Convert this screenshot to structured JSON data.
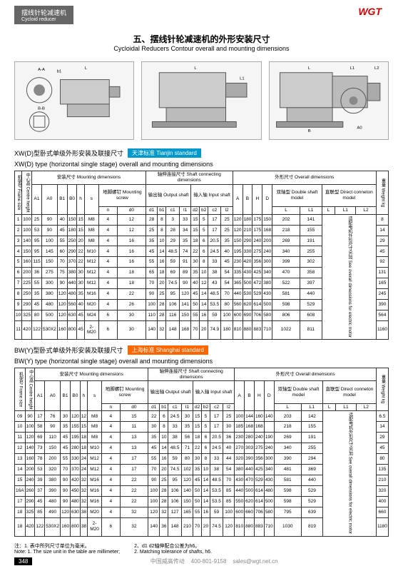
{
  "header": {
    "label_cn": "摆线针轮减速机",
    "label_en": "Cycloid reducer",
    "logo": "WGT"
  },
  "title": {
    "cn": "五、摆线针轮减速机的外形安装尺寸",
    "en": "Cycloidal Reducers Contour overall and mounting dimensions"
  },
  "xw": {
    "title_cn": "XW(D)型卧式单级外形安装及联接尺寸",
    "title_en": "XW(D) type (horizontal single stage) overall and mounting dimensions",
    "badge": "天津标准 Tianjin standard",
    "group_headers": {
      "frame": "机架号\nFrame size",
      "centre": "中心高\nCentre height",
      "mount": "安装尺寸 Mounting dimensions",
      "shaft": "轴伸连接尺寸\nShaft connecting dimensions",
      "overall": "外形尺寸 Overall dimensions",
      "weight": "重量\nWeight kg",
      "screw": "地脚螺钉\nMounting screw",
      "out": "输出轴\nOutput shaft",
      "in": "输入轴\nInput shaft",
      "double": "双轴型\nDouble shaft model",
      "direct": "直联型\nDirect conneton model",
      "motor_note": "适配电机外形尺寸另加\nSee overall dimensions\nfor electric motor"
    },
    "cols": [
      "A1",
      "A0",
      "B1",
      "B0",
      "h",
      "s",
      "n",
      "d0",
      "d1",
      "b1",
      "c1",
      "l1",
      "d2",
      "b2",
      "c2",
      "l2",
      "A",
      "B",
      "H",
      "D",
      "L",
      "L1",
      "L",
      "L1",
      "L2"
    ],
    "rows": [
      [
        "1",
        "100",
        "25",
        "90",
        "40",
        "150",
        "15",
        "M8",
        "4",
        "12",
        "28",
        "8",
        "3",
        "33",
        "15",
        "5",
        "17",
        "25",
        "120",
        "180",
        "175",
        "150",
        "202",
        "141",
        "",
        "",
        "",
        "8"
      ],
      [
        "2",
        "100",
        "53",
        "90",
        "45",
        "180",
        "15",
        "M8",
        "4",
        "12",
        "25",
        "8",
        "28",
        "34",
        "15",
        "5",
        "17",
        "25",
        "120",
        "210",
        "175",
        "168",
        "218",
        "155",
        "",
        "",
        "",
        "14"
      ],
      [
        "3",
        "140",
        "95",
        "100",
        "55",
        "250",
        "20",
        "M8",
        "4",
        "16",
        "35",
        "10",
        "29",
        "35",
        "18",
        "6",
        "20.5",
        "35",
        "150",
        "290",
        "240",
        "200",
        "269",
        "191",
        "",
        "",
        "",
        "29"
      ],
      [
        "4",
        "150",
        "95",
        "145",
        "60",
        "290",
        "22",
        "M10",
        "4",
        "16",
        "45",
        "14",
        "48.5",
        "74",
        "22",
        "6",
        "24.5",
        "40",
        "195",
        "330",
        "275",
        "240",
        "340",
        "255",
        "",
        "",
        "",
        "45"
      ],
      [
        "5",
        "160",
        "115",
        "150",
        "70",
        "370",
        "22",
        "M12",
        "4",
        "16",
        "55",
        "16",
        "59",
        "91",
        "30",
        "8",
        "33",
        "45",
        "230",
        "420",
        "356",
        "300",
        "399",
        "302",
        "",
        "",
        "",
        "92"
      ],
      [
        "6",
        "200",
        "36",
        "275",
        "75",
        "380",
        "30",
        "M12",
        "4",
        "18",
        "65",
        "18",
        "69",
        "89",
        "35",
        "10",
        "38",
        "54",
        "335",
        "430",
        "425",
        "340",
        "470",
        "358",
        "",
        "",
        "",
        "131"
      ],
      [
        "7",
        "225",
        "55",
        "300",
        "90",
        "440",
        "30",
        "M12",
        "4",
        "18",
        "70",
        "20",
        "74.5",
        "90",
        "40",
        "12",
        "43",
        "54",
        "365",
        "500",
        "472",
        "380",
        "522",
        "397",
        "",
        "",
        "",
        "165"
      ],
      [
        "8",
        "250",
        "35",
        "380",
        "120",
        "480",
        "35",
        "M16",
        "4",
        "22",
        "90",
        "25",
        "95",
        "120",
        "45",
        "14",
        "48.5",
        "70",
        "440",
        "530",
        "529",
        "430",
        "581",
        "440",
        "",
        "",
        "",
        "245"
      ],
      [
        "9",
        "290",
        "45",
        "480",
        "120",
        "560",
        "40",
        "M20",
        "4",
        "26",
        "100",
        "28",
        "106",
        "141",
        "50",
        "14",
        "53.5",
        "80",
        "560",
        "620",
        "614",
        "500",
        "598",
        "529",
        "",
        "",
        "",
        "390"
      ],
      [
        "10",
        "325",
        "80",
        "500",
        "120",
        "630",
        "45",
        "M24",
        "6",
        "30",
        "110",
        "28",
        "116",
        "150",
        "55",
        "16",
        "59",
        "100",
        "600",
        "690",
        "706",
        "580",
        "806",
        "608",
        "",
        "",
        "",
        "564"
      ],
      [
        "11",
        "420",
        "122",
        "530X2",
        "160",
        "800",
        "45",
        "2-M20",
        "6",
        "30",
        "140",
        "32",
        "148",
        "168",
        "70",
        "20",
        "74.9",
        "180",
        "810",
        "880",
        "883",
        "710",
        "1022",
        "811",
        "",
        "",
        "",
        "1160"
      ]
    ]
  },
  "bw": {
    "title_cn": "BW(Y)型卧式单级外形安装及联接尺寸",
    "title_en": "BW(Y) type (horizontal single stage) overall and mounting dimensions",
    "badge": "上海标准 Shanghai standard",
    "rows": [
      [
        "09",
        "90",
        "17",
        "76",
        "30",
        "120",
        "12",
        "M8",
        "4",
        "15",
        "22",
        "6",
        "24.5",
        "30",
        "15",
        "5",
        "17",
        "25",
        "100",
        "144",
        "160",
        "140",
        "203",
        "142",
        "",
        "",
        "",
        "6.5"
      ],
      [
        "10",
        "100",
        "58",
        "90",
        "35",
        "155",
        "15",
        "M8",
        "4",
        "11",
        "30",
        "8",
        "33",
        "35",
        "15",
        "5",
        "17",
        "30",
        "185",
        "168",
        "168",
        "",
        "218",
        "155",
        "",
        "",
        "",
        "14"
      ],
      [
        "11",
        "120",
        "69",
        "110",
        "45",
        "195",
        "18",
        "M8",
        "4",
        "13",
        "35",
        "10",
        "38",
        "56",
        "18",
        "6",
        "20.5",
        "36",
        "230",
        "280",
        "240",
        "190",
        "269",
        "191",
        "",
        "",
        "",
        "29"
      ],
      [
        "12",
        "140",
        "73",
        "150",
        "45",
        "280",
        "18",
        "M10",
        "4",
        "13",
        "45",
        "14",
        "48.5",
        "71",
        "22",
        "6",
        "24.5",
        "40",
        "270",
        "303",
        "275",
        "240",
        "340",
        "255",
        "",
        "",
        "",
        "45"
      ],
      [
        "13",
        "160",
        "78",
        "200",
        "55",
        "330",
        "24",
        "M12",
        "4",
        "17",
        "55",
        "16",
        "59",
        "80",
        "30",
        "8",
        "33",
        "44",
        "320",
        "390",
        "356",
        "300",
        "390",
        "294",
        "",
        "",
        "",
        "80"
      ],
      [
        "14",
        "200",
        "53",
        "320",
        "70",
        "370",
        "24",
        "M12",
        "4",
        "17",
        "70",
        "20",
        "74.5",
        "102",
        "35",
        "10",
        "38",
        "54",
        "380",
        "440",
        "425",
        "340",
        "481",
        "369",
        "",
        "",
        "",
        "135"
      ],
      [
        "15",
        "240",
        "39",
        "380",
        "90",
        "420",
        "32",
        "M16",
        "4",
        "22",
        "90",
        "25",
        "95",
        "120",
        "45",
        "14",
        "48.5",
        "70",
        "430",
        "470",
        "529",
        "430",
        "581",
        "440",
        "",
        "",
        "",
        "210"
      ],
      [
        "16A",
        "260",
        "37",
        "390",
        "90",
        "450",
        "32",
        "M16",
        "4",
        "22",
        "100",
        "28",
        "106",
        "140",
        "50",
        "14",
        "53.5",
        "85",
        "440",
        "500",
        "614",
        "480",
        "598",
        "529",
        "",
        "",
        "",
        "320"
      ],
      [
        "17",
        "290",
        "45",
        "480",
        "90",
        "480",
        "32",
        "M16",
        "4",
        "22",
        "100",
        "28",
        "106",
        "150",
        "50",
        "14",
        "53.5",
        "85",
        "550",
        "620",
        "614",
        "500",
        "598",
        "529",
        "",
        "",
        "",
        "400"
      ],
      [
        "18",
        "325",
        "85",
        "490",
        "120",
        "630",
        "38",
        "M20",
        "4",
        "32",
        "120",
        "32",
        "127",
        "165",
        "55",
        "16",
        "59",
        "100",
        "600",
        "660",
        "706",
        "580",
        "795",
        "639",
        "",
        "",
        "",
        "660"
      ],
      [
        "18",
        "420",
        "122",
        "530X2",
        "160",
        "800",
        "38",
        "2-M20",
        "6",
        "32",
        "140",
        "36",
        "148",
        "210",
        "70",
        "20",
        "74.5",
        "120",
        "810",
        "880",
        "883",
        "710",
        "1030",
        "819",
        "",
        "",
        "",
        "1180"
      ]
    ]
  },
  "notes": {
    "n1_cn": "注：1. 表中所列尺寸单位为毫米。",
    "n2_cn": "2、d1 d2轴伸配合公差为h6。",
    "n1_en": "Note: 1. The size unit in the table are millimeter;",
    "n2_en": "2. Matching tolerance of shafts, h6."
  },
  "footer": {
    "page": "348",
    "company": "中国威高传动",
    "phone": "400-801-9158",
    "email": "sales@wgt.net.cn"
  }
}
